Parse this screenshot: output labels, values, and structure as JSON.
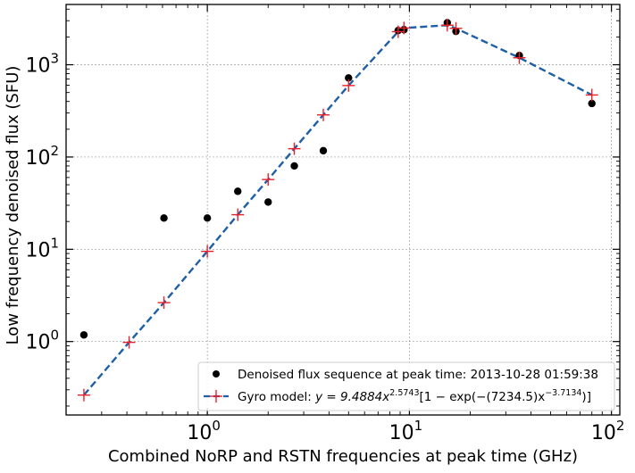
{
  "chart_data": {
    "type": "scatter",
    "xlabel": "Combined NoRP and RSTN frequencies at peak time (GHz)",
    "ylabel": "Low frequency denoised flux (SFU)",
    "xscale": "log",
    "yscale": "log",
    "xlim": [
      0.2,
      110
    ],
    "ylim": [
      0.16,
      4500
    ],
    "grid": true,
    "legend_placement": "lower-right",
    "x_ticks": [
      {
        "value": 1,
        "base": "10",
        "exp": "0"
      },
      {
        "value": 10,
        "base": "10",
        "exp": "1"
      },
      {
        "value": 100,
        "base": "10",
        "exp": "2"
      }
    ],
    "y_ticks": [
      {
        "value": 1,
        "base": "10",
        "exp": "0"
      },
      {
        "value": 10,
        "base": "10",
        "exp": "1"
      },
      {
        "value": 100,
        "base": "10",
        "exp": "2"
      },
      {
        "value": 1000,
        "base": "10",
        "exp": "3"
      }
    ],
    "series": [
      {
        "name": "Denoised flux sequence at peak time: 2013-10-28 01:59:38",
        "kind": "scatter",
        "color": "#000000",
        "points": [
          [
            0.245,
            1.18
          ],
          [
            0.61,
            21.8
          ],
          [
            1.0,
            21.8
          ],
          [
            1.415,
            42.5
          ],
          [
            2.0,
            32.5
          ],
          [
            2.695,
            80.0
          ],
          [
            3.75,
            117.0
          ],
          [
            5.0,
            720.0
          ],
          [
            8.8,
            2350.0
          ],
          [
            9.4,
            2400.0
          ],
          [
            15.4,
            2850.0
          ],
          [
            17.0,
            2300.0
          ],
          [
            35.0,
            1260.0
          ],
          [
            80.0,
            380.0
          ]
        ]
      },
      {
        "name_prefix": "Gyro model: ",
        "name_math": "y = 9.4884x",
        "name_exp1": "2.5743",
        "name_mid": "[1 − exp(−(7234.5)x",
        "name_exp2": "−3.7134",
        "name_end": ")]",
        "kind": "line+marker",
        "color": "#1f5fa6",
        "marker_color": "#e8202a",
        "points": [
          [
            0.245,
            0.263
          ],
          [
            0.41,
            0.98
          ],
          [
            0.61,
            2.64
          ],
          [
            1.0,
            9.5
          ],
          [
            1.415,
            23.7
          ],
          [
            2.0,
            57.0
          ],
          [
            2.695,
            123.0
          ],
          [
            3.75,
            286.0
          ],
          [
            5.0,
            595.0
          ],
          [
            8.8,
            2280.0
          ],
          [
            9.4,
            2500.0
          ],
          [
            15.4,
            2680.0
          ],
          [
            17.0,
            2480.0
          ],
          [
            35.0,
            1190.0
          ],
          [
            80.0,
            470.0
          ]
        ]
      }
    ]
  }
}
